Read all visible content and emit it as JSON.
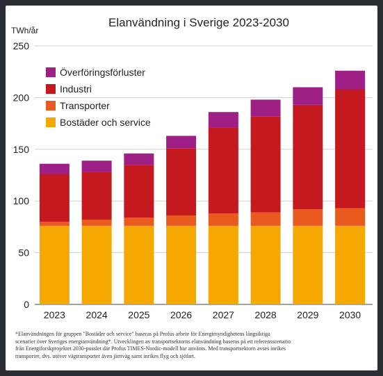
{
  "chart_data": {
    "type": "bar",
    "stacked": true,
    "title": "Elanvändning i Sverige 2023-2030",
    "ylabel": "TWh/år",
    "xlabel": "",
    "ylim": [
      0,
      250
    ],
    "yticks": [
      0,
      50,
      100,
      150,
      200,
      250
    ],
    "grid": true,
    "legend_position": "top-left",
    "categories": [
      "2023",
      "2024",
      "2025",
      "2026",
      "2027",
      "2028",
      "2029",
      "2030"
    ],
    "series": [
      {
        "name": "Bostäder och service",
        "color": "#f5a800",
        "values": [
          76,
          76,
          76,
          76,
          76,
          76,
          76,
          76
        ]
      },
      {
        "name": "Transporter",
        "color": "#e85a1e",
        "values": [
          4,
          6,
          8,
          10,
          12,
          13,
          16,
          17
        ]
      },
      {
        "name": "Industri",
        "color": "#c41a1f",
        "values": [
          46,
          46,
          51,
          65,
          83,
          93,
          101,
          115
        ]
      },
      {
        "name": "Överföringsförluster",
        "color": "#9e1f86",
        "values": [
          10,
          11,
          11,
          12,
          15,
          16,
          17,
          18
        ]
      }
    ],
    "legend_order": [
      "Överföringsförluster",
      "Industri",
      "Transporter",
      "Bostäder och service"
    ]
  },
  "footnote": {
    "lines": [
      "*Elanvändningen för gruppen \"Bostäder och service\" baseras på Profus arbete för Energimyndighetens långsiktiga",
      "scenarier över Sveriges energianvändning*. Utvecklingen av transportsektorns elanvändning baseras på ett referensscenario",
      "från Energiforskprojektet 2030-pusslet där Profus TIMES-Nordic-modell har använts. Med transportsektorn avses inrikes",
      "transporter, dvs. utöver vägtransporter även järnväg samt inrikes flyg och sjöfart."
    ]
  },
  "colors": {
    "page_background": "#2b2f33",
    "card_background": "#ffffff",
    "gridline": "#d0d0d0"
  }
}
